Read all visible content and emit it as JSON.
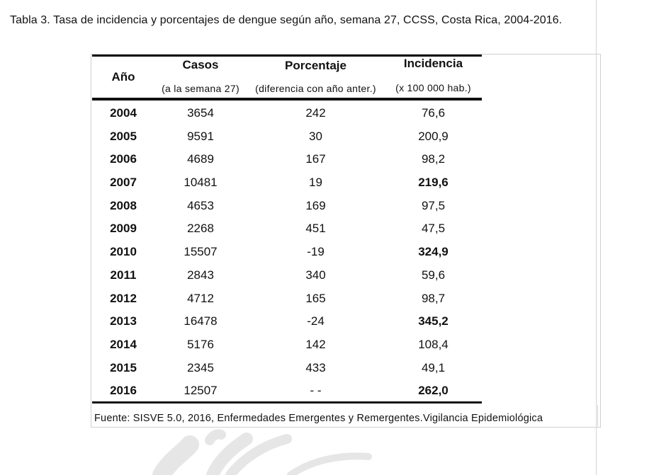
{
  "caption": "Tabla 3. Tasa de incidencia y porcentajes de dengue según año, semana 27, CCSS,  Costa Rica, 2004-2016.",
  "table": {
    "headers": {
      "year": "Año",
      "casos": "Casos",
      "casos_sub": "(a la semana 27)",
      "pct": "Porcentaje",
      "pct_sub": "(diferencia con año anter.)",
      "inc": "Incidencia",
      "inc_sub": "(x 100 000 hab.)"
    },
    "rows": [
      {
        "year": "2004",
        "casos": "3654",
        "pct": "242",
        "inc": "76,6",
        "inc_bold": false
      },
      {
        "year": "2005",
        "casos": "9591",
        "pct": "30",
        "inc": "200,9",
        "inc_bold": false
      },
      {
        "year": "2006",
        "casos": "4689",
        "pct": "167",
        "inc": "98,2",
        "inc_bold": false
      },
      {
        "year": "2007",
        "casos": "10481",
        "pct": "19",
        "inc": "219,6",
        "inc_bold": true
      },
      {
        "year": "2008",
        "casos": "4653",
        "pct": "169",
        "inc": "97,5",
        "inc_bold": false
      },
      {
        "year": "2009",
        "casos": "2268",
        "pct": "451",
        "inc": "47,5",
        "inc_bold": false
      },
      {
        "year": "2010",
        "casos": "15507",
        "pct": "-19",
        "inc": "324,9",
        "inc_bold": true
      },
      {
        "year": "2011",
        "casos": "2843",
        "pct": "340",
        "inc": "59,6",
        "inc_bold": false
      },
      {
        "year": "2012",
        "casos": "4712",
        "pct": "165",
        "inc": "98,7",
        "inc_bold": false
      },
      {
        "year": "2013",
        "casos": "16478",
        "pct": "-24",
        "inc": "345,2",
        "inc_bold": true
      },
      {
        "year": "2014",
        "casos": "5176",
        "pct": "142",
        "inc": "108,4",
        "inc_bold": false
      },
      {
        "year": "2015",
        "casos": "2345",
        "pct": "433",
        "inc": "49,1",
        "inc_bold": false
      },
      {
        "year": "2016",
        "casos": "12507",
        "pct": "- -",
        "inc": "262,0",
        "inc_bold": true
      }
    ]
  },
  "source": "Fuente: SISVE 5.0, 2016, Enfermedades Emergentes y Remergentes.Vigilancia Epidemiológica"
}
